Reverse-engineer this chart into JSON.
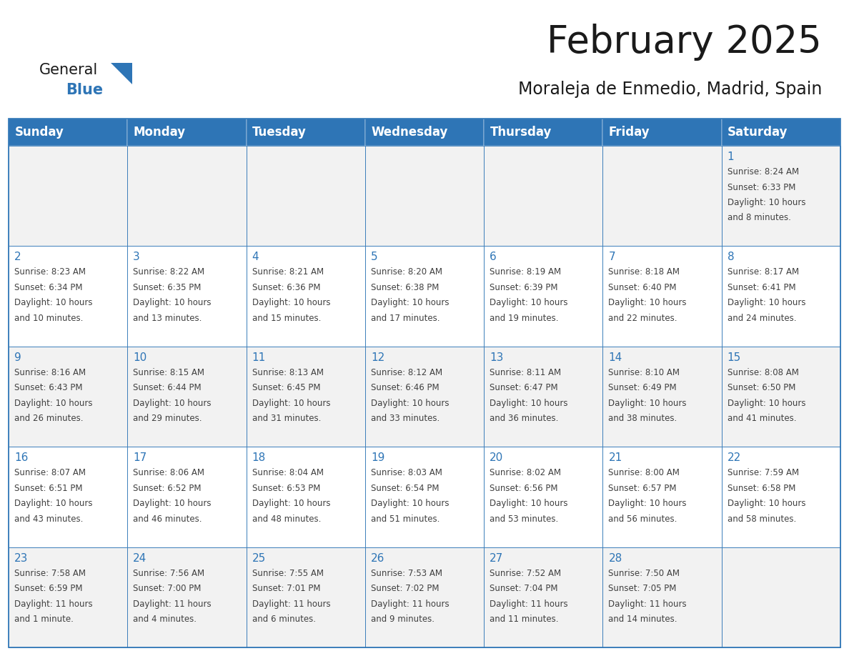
{
  "title": "February 2025",
  "subtitle": "Moraleja de Enmedio, Madrid, Spain",
  "header_bg": "#2E75B6",
  "header_text_color": "#FFFFFF",
  "cell_bg_white": "#FFFFFF",
  "cell_bg_gray": "#F2F2F2",
  "border_color": "#2E75B6",
  "text_color": "#404040",
  "day_number_color": "#2E75B6",
  "days_of_week": [
    "Sunday",
    "Monday",
    "Tuesday",
    "Wednesday",
    "Thursday",
    "Friday",
    "Saturday"
  ],
  "row_bg": [
    "#F2F2F2",
    "#FFFFFF",
    "#F2F2F2",
    "#FFFFFF",
    "#F2F2F2"
  ],
  "weeks": [
    [
      {
        "day": "",
        "info": ""
      },
      {
        "day": "",
        "info": ""
      },
      {
        "day": "",
        "info": ""
      },
      {
        "day": "",
        "info": ""
      },
      {
        "day": "",
        "info": ""
      },
      {
        "day": "",
        "info": ""
      },
      {
        "day": "1",
        "info": "Sunrise: 8:24 AM\nSunset: 6:33 PM\nDaylight: 10 hours\nand 8 minutes."
      }
    ],
    [
      {
        "day": "2",
        "info": "Sunrise: 8:23 AM\nSunset: 6:34 PM\nDaylight: 10 hours\nand 10 minutes."
      },
      {
        "day": "3",
        "info": "Sunrise: 8:22 AM\nSunset: 6:35 PM\nDaylight: 10 hours\nand 13 minutes."
      },
      {
        "day": "4",
        "info": "Sunrise: 8:21 AM\nSunset: 6:36 PM\nDaylight: 10 hours\nand 15 minutes."
      },
      {
        "day": "5",
        "info": "Sunrise: 8:20 AM\nSunset: 6:38 PM\nDaylight: 10 hours\nand 17 minutes."
      },
      {
        "day": "6",
        "info": "Sunrise: 8:19 AM\nSunset: 6:39 PM\nDaylight: 10 hours\nand 19 minutes."
      },
      {
        "day": "7",
        "info": "Sunrise: 8:18 AM\nSunset: 6:40 PM\nDaylight: 10 hours\nand 22 minutes."
      },
      {
        "day": "8",
        "info": "Sunrise: 8:17 AM\nSunset: 6:41 PM\nDaylight: 10 hours\nand 24 minutes."
      }
    ],
    [
      {
        "day": "9",
        "info": "Sunrise: 8:16 AM\nSunset: 6:43 PM\nDaylight: 10 hours\nand 26 minutes."
      },
      {
        "day": "10",
        "info": "Sunrise: 8:15 AM\nSunset: 6:44 PM\nDaylight: 10 hours\nand 29 minutes."
      },
      {
        "day": "11",
        "info": "Sunrise: 8:13 AM\nSunset: 6:45 PM\nDaylight: 10 hours\nand 31 minutes."
      },
      {
        "day": "12",
        "info": "Sunrise: 8:12 AM\nSunset: 6:46 PM\nDaylight: 10 hours\nand 33 minutes."
      },
      {
        "day": "13",
        "info": "Sunrise: 8:11 AM\nSunset: 6:47 PM\nDaylight: 10 hours\nand 36 minutes."
      },
      {
        "day": "14",
        "info": "Sunrise: 8:10 AM\nSunset: 6:49 PM\nDaylight: 10 hours\nand 38 minutes."
      },
      {
        "day": "15",
        "info": "Sunrise: 8:08 AM\nSunset: 6:50 PM\nDaylight: 10 hours\nand 41 minutes."
      }
    ],
    [
      {
        "day": "16",
        "info": "Sunrise: 8:07 AM\nSunset: 6:51 PM\nDaylight: 10 hours\nand 43 minutes."
      },
      {
        "day": "17",
        "info": "Sunrise: 8:06 AM\nSunset: 6:52 PM\nDaylight: 10 hours\nand 46 minutes."
      },
      {
        "day": "18",
        "info": "Sunrise: 8:04 AM\nSunset: 6:53 PM\nDaylight: 10 hours\nand 48 minutes."
      },
      {
        "day": "19",
        "info": "Sunrise: 8:03 AM\nSunset: 6:54 PM\nDaylight: 10 hours\nand 51 minutes."
      },
      {
        "day": "20",
        "info": "Sunrise: 8:02 AM\nSunset: 6:56 PM\nDaylight: 10 hours\nand 53 minutes."
      },
      {
        "day": "21",
        "info": "Sunrise: 8:00 AM\nSunset: 6:57 PM\nDaylight: 10 hours\nand 56 minutes."
      },
      {
        "day": "22",
        "info": "Sunrise: 7:59 AM\nSunset: 6:58 PM\nDaylight: 10 hours\nand 58 minutes."
      }
    ],
    [
      {
        "day": "23",
        "info": "Sunrise: 7:58 AM\nSunset: 6:59 PM\nDaylight: 11 hours\nand 1 minute."
      },
      {
        "day": "24",
        "info": "Sunrise: 7:56 AM\nSunset: 7:00 PM\nDaylight: 11 hours\nand 4 minutes."
      },
      {
        "day": "25",
        "info": "Sunrise: 7:55 AM\nSunset: 7:01 PM\nDaylight: 11 hours\nand 6 minutes."
      },
      {
        "day": "26",
        "info": "Sunrise: 7:53 AM\nSunset: 7:02 PM\nDaylight: 11 hours\nand 9 minutes."
      },
      {
        "day": "27",
        "info": "Sunrise: 7:52 AM\nSunset: 7:04 PM\nDaylight: 11 hours\nand 11 minutes."
      },
      {
        "day": "28",
        "info": "Sunrise: 7:50 AM\nSunset: 7:05 PM\nDaylight: 11 hours\nand 14 minutes."
      },
      {
        "day": "",
        "info": ""
      }
    ]
  ],
  "logo_text_general": "General",
  "logo_text_blue": "Blue",
  "logo_triangle_color": "#2E75B6",
  "title_fontsize": 38,
  "subtitle_fontsize": 17,
  "header_fontsize": 12,
  "day_num_fontsize": 11,
  "info_fontsize": 8.5
}
